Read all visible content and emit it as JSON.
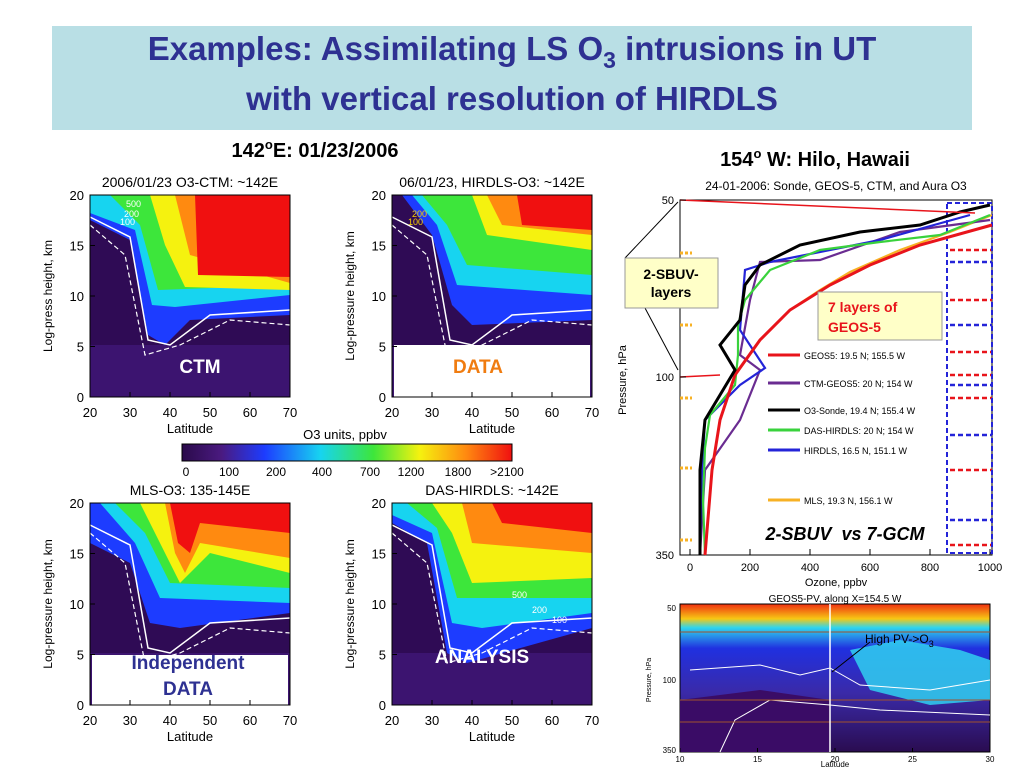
{
  "title": {
    "line1": "Examples: Assimilating LS O",
    "line1_sub": "3",
    "line1_end": " intrusions in UT",
    "line2": "with vertical resolution of HIRDLS"
  },
  "left_heading": {
    "pre": "142",
    "sup": "o",
    "post": "E: 01/23/2006"
  },
  "panels": [
    {
      "title": "2006/01/23 O3-CTM: ~142E",
      "ylabel": "Log-press height, km",
      "xlabel": "Latitude",
      "xticks": [
        20,
        30,
        40,
        50,
        60,
        70
      ],
      "yticks": [
        0,
        5,
        10,
        15,
        20
      ],
      "tag": [
        "CTM"
      ],
      "contour_labels": [
        "500",
        "200",
        "100"
      ]
    },
    {
      "title": "06/01/23, HIRDLS-O3: ~142E",
      "ylabel": "Log-pressure height, km",
      "xlabel": "Latitude",
      "xticks": [
        20,
        30,
        40,
        50,
        60,
        70
      ],
      "yticks": [
        0,
        5,
        10,
        15,
        20
      ],
      "tag": [
        "DATA"
      ],
      "contour_labels": [
        "200",
        "100"
      ]
    },
    {
      "title": "MLS-O3: 135-145E",
      "ylabel": "Log-pressure height, km",
      "xlabel": "Latitude",
      "xticks": [
        20,
        30,
        40,
        50,
        60,
        70
      ],
      "yticks": [
        0,
        5,
        10,
        15,
        20
      ],
      "tag": [
        "Independent",
        "DATA"
      ],
      "contour_labels": []
    },
    {
      "title": "DAS-HIRDLS: ~142E",
      "ylabel": "Log-pressure height, km",
      "xlabel": "Latitude",
      "xticks": [
        20,
        30,
        40,
        50,
        60,
        70
      ],
      "yticks": [
        0,
        5,
        10,
        15,
        20
      ],
      "tag": [
        "ANALYSIS"
      ],
      "contour_labels": [
        "500",
        "200",
        "100"
      ]
    }
  ],
  "colorbar": {
    "title": "O3 units, ppbv",
    "ticks": [
      0,
      100,
      200,
      400,
      700,
      1200,
      1800,
      ">2100"
    ]
  },
  "profile": {
    "heading": {
      "pre": "154",
      "sup": "o",
      "post": " W: Hilo, Hawaii"
    },
    "title": "24-01-2006: Sonde, GEOS-5, CTM, and Aura O3",
    "ylabel": "Pressure, hPa",
    "xlabel": "Ozone, ppbv",
    "xticks": [
      0,
      200,
      400,
      600,
      800,
      1000
    ],
    "yticks": [
      50,
      100,
      350
    ],
    "legend": [
      {
        "name": "GEOS5: 19.5 N; 155.5 W",
        "color": "#e8141b"
      },
      {
        "name": "CTM-GEOS5: 20 N; 154 W",
        "color": "#6a2c91"
      },
      {
        "name": "O3-Sonde, 19.4 N; 155.4 W",
        "color": "#000000"
      },
      {
        "name": "DAS-HIRDLS: 20 N; 154 W",
        "color": "#39d23c"
      },
      {
        "name": "HIRDLS, 16.5 N, 151.1 W",
        "color": "#2424d8"
      },
      {
        "name": "MLS, 19.3 N, 156.1 W",
        "color": "#f7b124"
      }
    ],
    "sbuv_callout": [
      "2-SBUV-",
      "layers"
    ],
    "geos_callout": [
      "7 layers of",
      "GEOS-5"
    ],
    "comparison": "2-SBUV  vs 7-GCM"
  },
  "pv": {
    "title": "GEOS5-PV, along X=154.5 W",
    "ylabel": "Pressure, hPa",
    "xlabel": "Latitude",
    "xticks": [
      10,
      15,
      20,
      25,
      30
    ],
    "yticks": [
      50,
      100,
      350
    ],
    "annotation": {
      "pre": "High PV->O",
      "sub": "3"
    }
  }
}
